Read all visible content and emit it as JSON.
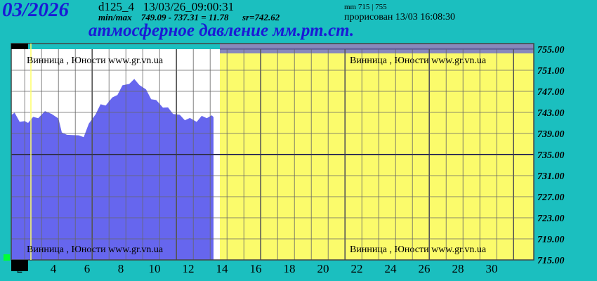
{
  "header": {
    "month": "03/2026",
    "code": "d125_4",
    "datetime": "13/03/26_09:00:31",
    "minmax_label": "min/max",
    "minmax_expr": "749.09 - 737.31 = 11.78",
    "sr": "sr=742.62",
    "mm_range": "mm 715 | 755",
    "drawn": "прорисован 13/03 16:08:30",
    "title": "атмосферное давление мм.рт.ст."
  },
  "watermark": "Винница , Юности  www.gr.vn.ua",
  "colors": {
    "background": "#1bbfbf",
    "fill": "#6666ee",
    "future": "#fbfb6b",
    "plot_bg": "#ffffff",
    "title": "#1a1ad6",
    "band": "#8888bb"
  },
  "chart_data": {
    "type": "area",
    "title": "атмосферное давление мм.рт.ст.",
    "xlabel": "",
    "ylabel": "",
    "ylim": [
      715,
      755
    ],
    "xlim": [
      1,
      32
    ],
    "y_ticks": [
      "755.00",
      "751.00",
      "747.00",
      "743.00",
      "739.00",
      "735.00",
      "731.00",
      "727.00",
      "723.00",
      "719.00",
      "715.00"
    ],
    "x_ticks": [
      "2",
      "4",
      "6",
      "8",
      "10",
      "12",
      "14",
      "16",
      "18",
      "20",
      "22",
      "24",
      "26",
      "28",
      "30"
    ],
    "reference_line": 735,
    "data_until_day": 13,
    "x": [
      1.0,
      1.2,
      1.5,
      1.8,
      2.0,
      2.3,
      2.6,
      3.0,
      3.4,
      3.8,
      4.0,
      4.3,
      4.6,
      5.0,
      5.3,
      5.6,
      6.0,
      6.3,
      6.6,
      7.0,
      7.3,
      7.6,
      8.0,
      8.3,
      8.6,
      9.0,
      9.3,
      9.6,
      10.0,
      10.3,
      10.6,
      11.0,
      11.3,
      11.6,
      12.0,
      12.3,
      12.6,
      12.9
    ],
    "values": [
      742.8,
      742.6,
      741.5,
      741.0,
      741.3,
      741.8,
      742.2,
      742.9,
      743.0,
      741.5,
      739.5,
      738.4,
      739.0,
      738.3,
      738.6,
      740.5,
      742.9,
      744.2,
      744.6,
      745.5,
      746.6,
      747.8,
      748.7,
      749.0,
      748.5,
      747.0,
      745.8,
      745.0,
      744.2,
      743.6,
      743.0,
      742.2,
      741.8,
      741.6,
      741.5,
      742.0,
      742.2,
      742.1
    ]
  }
}
